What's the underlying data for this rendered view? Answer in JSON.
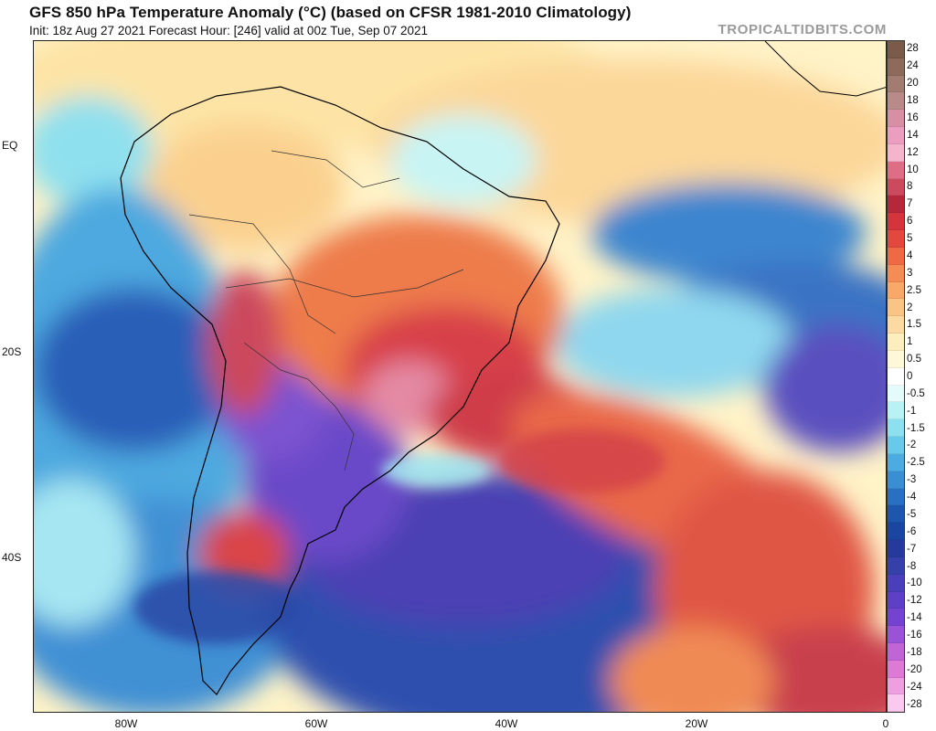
{
  "header": {
    "title": "GFS 850 hPa Temperature Anomaly (°C) (based on CFSR 1981-2010 Climatology)",
    "subtitle": "Init: 18z Aug 27 2021   Forecast Hour: [246]   valid at 00z Tue, Sep 07 2021",
    "brand": "TROPICALTIDBITS.COM"
  },
  "map": {
    "latitude_labels": [
      "EQ",
      "20S",
      "40S"
    ],
    "longitude_labels": [
      "80W",
      "60W",
      "40W",
      "20W",
      "0"
    ]
  },
  "colorbar": {
    "levels": [
      "28",
      "24",
      "20",
      "18",
      "16",
      "14",
      "12",
      "10",
      "8",
      "7",
      "6",
      "5",
      "4",
      "3",
      "2.5",
      "2",
      "1.5",
      "1",
      "0.5",
      "0",
      "-0.5",
      "-1",
      "-1.5",
      "-2",
      "-2.5",
      "-3",
      "-4",
      "-5",
      "-6",
      "-7",
      "-8",
      "-10",
      "-12",
      "-14",
      "-16",
      "-18",
      "-20",
      "-24",
      "-28"
    ],
    "colors": [
      "#7a5a48",
      "#8d6a5a",
      "#a27c70",
      "#b98a8a",
      "#d78fa6",
      "#ec9ec0",
      "#f3b4cc",
      "#e06d86",
      "#cc4a5d",
      "#b5283a",
      "#d4343c",
      "#e2483e",
      "#ee6a45",
      "#f58c55",
      "#f9a86a",
      "#fbc487",
      "#fcdaa2",
      "#fdeebd",
      "#fff8d8",
      "#ffffff",
      "#e4fbfb",
      "#b8f2f4",
      "#8ce0ef",
      "#69c9ea",
      "#4cabe0",
      "#3a8fd4",
      "#2a70c2",
      "#1d56ac",
      "#1a45a0",
      "#263a9c",
      "#3540a8",
      "#4a3fb8",
      "#5e3fc6",
      "#7444d0",
      "#9a52d6",
      "#c064d6",
      "#de7ad6",
      "#ef9fe0",
      "#fbc8ef"
    ]
  }
}
